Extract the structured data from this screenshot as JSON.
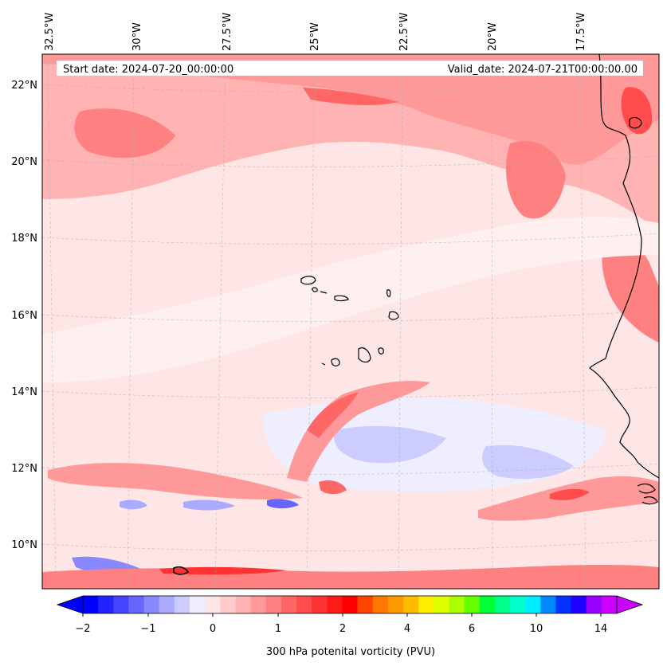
{
  "header": {
    "start_label": "Start date: 2024-07-20_00:00:00",
    "valid_label": "Valid_date: 2024-07-21T00:00:00.00"
  },
  "map": {
    "lon_labels": [
      "32.5°W",
      "30°W",
      "27.5°W",
      "25°W",
      "22.5°W",
      "20°W",
      "17.5°W"
    ],
    "lat_labels": [
      "22°N",
      "20°N",
      "18°N",
      "16°N",
      "14°N",
      "12°N",
      "10°N"
    ],
    "gridlines": true,
    "field": "300 hPa potential vorticity",
    "background_color": "#ffe6e6"
  },
  "colorbar": {
    "label": "300 hPa potenital vorticity (PVU)",
    "tick_labels": [
      "−2",
      "−1",
      "0",
      "1",
      "2",
      "4",
      "6",
      "10",
      "14"
    ],
    "colors": [
      "#0000ff",
      "#2222ff",
      "#4444ff",
      "#6666ff",
      "#8888ff",
      "#aaaaff",
      "#ccccff",
      "#eeeeff",
      "#ffe6e6",
      "#ffcccc",
      "#ffb3b3",
      "#ff9999",
      "#ff8080",
      "#ff6666",
      "#ff4d4d",
      "#ff3333",
      "#ff1a1a",
      "#ff0000",
      "#ff4400",
      "#ff7700",
      "#ff9900",
      "#ffbb00",
      "#ffee00",
      "#ddff00",
      "#aaff00",
      "#66ff00",
      "#00ff33",
      "#00ff88",
      "#00ffcc",
      "#00eeff",
      "#0088ff",
      "#0033ff",
      "#2200ff",
      "#9900ff",
      "#cc00ff"
    ]
  }
}
